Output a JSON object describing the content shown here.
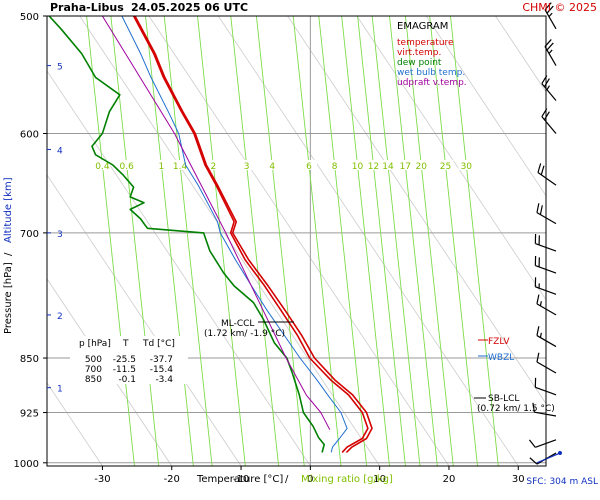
{
  "header": {
    "station": "Praha-Libus",
    "datetime": "24.05.2025 06 UTC",
    "credit": "CHMI © 2025"
  },
  "legend": {
    "title": "EMAGRAM",
    "items": [
      {
        "label": "temperature",
        "color": "#d40000"
      },
      {
        "label": "virt.temp.",
        "color": "#d40000"
      },
      {
        "label": "dew point",
        "color": "#008000"
      },
      {
        "label": "wet bulb temp.",
        "color": "#1e6fd0"
      },
      {
        "label": "udpraft v.temp.",
        "color": "#a000a0"
      }
    ]
  },
  "table": {
    "headers": [
      "p [hPa]",
      "T",
      "Td [°C]"
    ],
    "rows": [
      [
        "500",
        "-25.5",
        "-37.7"
      ],
      [
        "700",
        "-11.5",
        "-15.4"
      ],
      [
        "850",
        "-0.1",
        "-3.4"
      ]
    ]
  },
  "annotations": {
    "ml_ccl": "ML-CCL",
    "ml_ccl_detail": "(1.72 km/ -1.9 °C)",
    "sb_lcl": "SB-LCL",
    "sb_lcl_detail": "(0.72 km/ 1.5 °C)",
    "fzlv": "FZLV",
    "wbzl": "WBZL"
  },
  "footer": {
    "sfc": "SFC: 304 m ASL"
  },
  "chart_data": {
    "type": "line",
    "xlabel": "Temperature [°C]",
    "xlabel_sep": "/",
    "xlabel2": "Mixing ratio [g/kg]",
    "ylabel": "Pressure [hPa]",
    "ylabel_sep": "/",
    "ylabel2": "Altitude [km]",
    "xlim": [
      -38,
      34
    ],
    "ylim": [
      1005,
      500
    ],
    "y_scale": "log",
    "x_ticks": [
      -30,
      -20,
      -10,
      0,
      10,
      20,
      30
    ],
    "x_tick_labels": [
      "-30",
      "-20",
      "-10",
      "0",
      "10",
      "20",
      "30"
    ],
    "y_ticks": [
      500,
      600,
      700,
      850,
      925,
      1000
    ],
    "y_tick_labels": [
      "500",
      "600",
      "700",
      "850",
      "925",
      "1000"
    ],
    "altitude_ticks": [
      {
        "label": "1",
        "p": 890
      },
      {
        "label": "2",
        "p": 795
      },
      {
        "label": "3",
        "p": 700
      },
      {
        "label": "4",
        "p": 615
      },
      {
        "label": "5",
        "p": 540
      }
    ],
    "mixing_ratio_labels": [
      {
        "label": "0.4",
        "x": -30
      },
      {
        "label": "0.6",
        "x": -26.5
      },
      {
        "label": "1",
        "x": -21.5
      },
      {
        "label": "1.4",
        "x": -18.8
      },
      {
        "label": "2",
        "x": -14
      },
      {
        "label": "3",
        "x": -9.2
      },
      {
        "label": "4",
        "x": -5.5
      },
      {
        "label": "6",
        "x": -0.2
      },
      {
        "label": "8",
        "x": 3.5
      },
      {
        "label": "10",
        "x": 6.8
      },
      {
        "label": "12",
        "x": 9.1
      },
      {
        "label": "14",
        "x": 11.2
      },
      {
        "label": "17",
        "x": 13.7
      },
      {
        "label": "20",
        "x": 16
      },
      {
        "label": "25",
        "x": 19.5
      },
      {
        "label": "30",
        "x": 22.5
      }
    ],
    "series": [
      {
        "name": "temperature",
        "color": "#d40000",
        "points": [
          [
            -25.5,
            500
          ],
          [
            -22.6,
            530
          ],
          [
            -21.2,
            550
          ],
          [
            -18.6,
            580
          ],
          [
            -16.8,
            600
          ],
          [
            -15.2,
            630
          ],
          [
            -13.6,
            650
          ],
          [
            -11.0,
            688
          ],
          [
            -11.5,
            700
          ],
          [
            -9.4,
            730
          ],
          [
            -6.6,
            760
          ],
          [
            -4.2,
            790
          ],
          [
            -1.9,
            820
          ],
          [
            -0.1,
            850
          ],
          [
            3.0,
            880
          ],
          [
            5.5,
            900
          ],
          [
            7.5,
            925
          ],
          [
            8.3,
            948
          ],
          [
            7.5,
            963
          ],
          [
            5.3,
            976
          ],
          [
            4.6,
            984
          ]
        ]
      },
      {
        "name": "virt.temp.",
        "color": "#d40000",
        "points": [
          [
            -25.3,
            500
          ],
          [
            -22.4,
            530
          ],
          [
            -21.0,
            550
          ],
          [
            -18.4,
            580
          ],
          [
            -16.6,
            600
          ],
          [
            -15.0,
            630
          ],
          [
            -13.4,
            650
          ],
          [
            -10.7,
            688
          ],
          [
            -11.2,
            700
          ],
          [
            -8.9,
            730
          ],
          [
            -6.1,
            760
          ],
          [
            -3.6,
            790
          ],
          [
            -1.3,
            820
          ],
          [
            0.6,
            850
          ],
          [
            3.6,
            880
          ],
          [
            6.1,
            900
          ],
          [
            8.1,
            925
          ],
          [
            8.9,
            948
          ],
          [
            8.1,
            963
          ],
          [
            6.0,
            976
          ],
          [
            5.2,
            984
          ]
        ]
      },
      {
        "name": "dew point",
        "color": "#008000",
        "points": [
          [
            -37.7,
            500
          ],
          [
            -36,
            510
          ],
          [
            -33,
            530
          ],
          [
            -31,
            550
          ],
          [
            -27.5,
            565
          ],
          [
            -29,
            580
          ],
          [
            -30,
            600
          ],
          [
            -31.5,
            612
          ],
          [
            -31,
            620
          ],
          [
            -28.5,
            630
          ],
          [
            -27,
            640
          ],
          [
            -25.5,
            652
          ],
          [
            -26,
            662
          ],
          [
            -24,
            668
          ],
          [
            -26,
            675
          ],
          [
            -24.5,
            685
          ],
          [
            -24,
            690
          ],
          [
            -23.5,
            695
          ],
          [
            -15.4,
            700
          ],
          [
            -14.5,
            720
          ],
          [
            -12.5,
            745
          ],
          [
            -11,
            760
          ],
          [
            -8.2,
            780
          ],
          [
            -6.8,
            800
          ],
          [
            -5.2,
            830
          ],
          [
            -3.4,
            850
          ],
          [
            -2.6,
            870
          ],
          [
            -1.6,
            900
          ],
          [
            -1.0,
            925
          ],
          [
            0.4,
            945
          ],
          [
            1.2,
            962
          ],
          [
            2,
            972
          ],
          [
            1.7,
            984
          ]
        ]
      },
      {
        "name": "wet bulb temp.",
        "color": "#1e6fd0",
        "points": [
          [
            -27.2,
            500
          ],
          [
            -24.5,
            530
          ],
          [
            -23,
            550
          ],
          [
            -20.5,
            580
          ],
          [
            -19,
            600
          ],
          [
            -18,
            630
          ],
          [
            -16.2,
            650
          ],
          [
            -13.4,
            688
          ],
          [
            -13.0,
            700
          ],
          [
            -10.8,
            730
          ],
          [
            -8.5,
            760
          ],
          [
            -6.2,
            790
          ],
          [
            -3.8,
            820
          ],
          [
            -1.5,
            850
          ],
          [
            1.0,
            880
          ],
          [
            2.5,
            900
          ],
          [
            4.4,
            925
          ],
          [
            5.3,
            948
          ],
          [
            4.2,
            963
          ],
          [
            3.2,
            976
          ],
          [
            3.0,
            984
          ]
        ]
      },
      {
        "name": "udpraft v.temp.",
        "color": "#a000a0",
        "points": [
          [
            -30,
            500
          ],
          [
            -19.6,
            600
          ],
          [
            -12.2,
            700
          ],
          [
            -3.5,
            850
          ],
          [
            -0.6,
            900
          ],
          [
            1.5,
            925
          ],
          [
            2.8,
            950
          ]
        ]
      }
    ],
    "levels": [
      {
        "name": "FZLV",
        "p": 850,
        "color": "#d40000"
      },
      {
        "name": "WBZL",
        "p": 873,
        "color": "#1e6fd0"
      }
    ],
    "wind_barbs": [
      {
        "p": 510,
        "dir": 330,
        "speed_kt": 25
      },
      {
        "p": 540,
        "dir": 330,
        "speed_kt": 25
      },
      {
        "p": 570,
        "dir": 320,
        "speed_kt": 25
      },
      {
        "p": 600,
        "dir": 320,
        "speed_kt": 20
      },
      {
        "p": 650,
        "dir": 305,
        "speed_kt": 20
      },
      {
        "p": 690,
        "dir": 300,
        "speed_kt": 20
      },
      {
        "p": 720,
        "dir": 290,
        "speed_kt": 20
      },
      {
        "p": 745,
        "dir": 290,
        "speed_kt": 20
      },
      {
        "p": 770,
        "dir": 290,
        "speed_kt": 15
      },
      {
        "p": 795,
        "dir": 300,
        "speed_kt": 15
      },
      {
        "p": 835,
        "dir": 300,
        "speed_kt": 15
      },
      {
        "p": 870,
        "dir": 300,
        "speed_kt": 10
      },
      {
        "p": 900,
        "dir": 290,
        "speed_kt": 10
      },
      {
        "p": 930,
        "dir": 280,
        "speed_kt": 10
      },
      {
        "p": 965,
        "dir": 250,
        "speed_kt": 10
      },
      {
        "p": 985,
        "dir": 240,
        "speed_kt": 10
      }
    ],
    "grid": true
  }
}
